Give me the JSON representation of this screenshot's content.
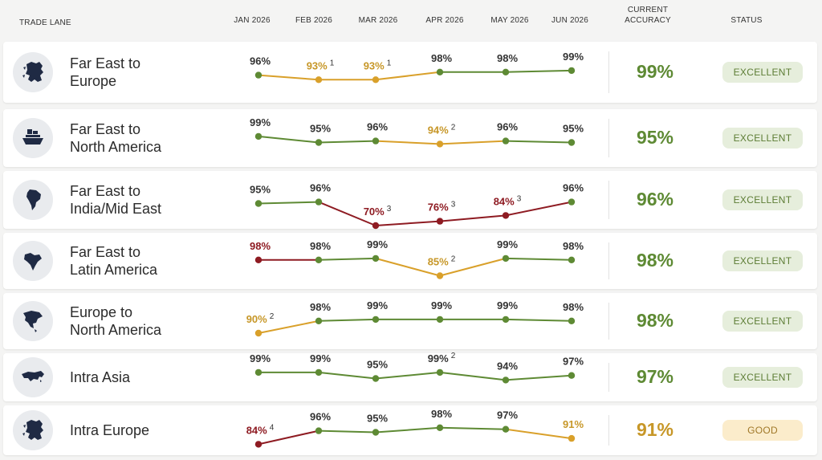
{
  "header": {
    "trade_lane": "TRADE LANE",
    "months": [
      "JAN 2026",
      "FEB 2026",
      "MAR 2026",
      "APR 2026",
      "MAY 2026",
      "JUN 2026"
    ],
    "current_accuracy": "CURRENT\nACCURACY",
    "status": "STATUS"
  },
  "colors": {
    "green": "#5e8a34",
    "amber": "#d9a02a",
    "red": "#8e1b22",
    "green_text": "#5e8a34",
    "amber_text": "#c79728"
  },
  "chart_data": {
    "type": "line",
    "x": [
      "JAN 2026",
      "FEB 2026",
      "MAR 2026",
      "APR 2026",
      "MAY 2026",
      "JUN 2026"
    ],
    "unit": "%",
    "series": [
      {
        "name": "Far East to\nEurope",
        "icon": "europe-map-icon",
        "values": [
          96,
          93,
          93,
          98,
          98,
          99
        ],
        "levels": [
          "green",
          "amber",
          "amber",
          "green",
          "green",
          "green"
        ],
        "footnotes": [
          "",
          "1",
          "1",
          "",
          "",
          ""
        ],
        "current_accuracy": "99%",
        "status": "EXCELLENT",
        "status_level": "excellent"
      },
      {
        "name": "Far East to\nNorth America",
        "icon": "cargo-ship-icon",
        "values": [
          99,
          95,
          96,
          94,
          96,
          95
        ],
        "levels": [
          "green",
          "green",
          "green",
          "amber",
          "green",
          "green"
        ],
        "footnotes": [
          "",
          "",
          "",
          "2",
          "",
          ""
        ],
        "current_accuracy": "95%",
        "status": "EXCELLENT",
        "status_level": "excellent"
      },
      {
        "name": "Far East to\nIndia/Mid East",
        "icon": "south-america-map-icon",
        "values": [
          95,
          96,
          70,
          76,
          84,
          96
        ],
        "levels": [
          "green",
          "green",
          "red",
          "red",
          "red",
          "green"
        ],
        "footnotes": [
          "",
          "",
          "3",
          "3",
          "3",
          ""
        ],
        "current_accuracy": "96%",
        "status": "EXCELLENT",
        "status_level": "excellent"
      },
      {
        "name": "Far East to\nLatin America",
        "icon": "india-map-icon",
        "values": [
          98,
          98,
          99,
          85,
          99,
          98
        ],
        "levels": [
          "red",
          "green",
          "green",
          "amber",
          "green",
          "green"
        ],
        "footnotes": [
          "",
          "",
          "",
          "2",
          "",
          ""
        ],
        "current_accuracy": "98%",
        "status": "EXCELLENT",
        "status_level": "excellent"
      },
      {
        "name": "Europe to\nNorth America",
        "icon": "north-america-map-icon",
        "values": [
          90,
          98,
          99,
          99,
          99,
          98
        ],
        "levels": [
          "amber",
          "green",
          "green",
          "green",
          "green",
          "green"
        ],
        "footnotes": [
          "2",
          "",
          "",
          "",
          "",
          ""
        ],
        "current_accuracy": "98%",
        "status": "EXCELLENT",
        "status_level": "excellent"
      },
      {
        "name": "Intra Asia",
        "icon": "asia-map-icon",
        "values": [
          99,
          99,
          95,
          99,
          94,
          97
        ],
        "levels": [
          "green",
          "green",
          "green",
          "green",
          "green",
          "green"
        ],
        "footnotes": [
          "",
          "",
          "",
          "2",
          "",
          ""
        ],
        "current_accuracy": "97%",
        "status": "EXCELLENT",
        "status_level": "excellent"
      },
      {
        "name": "Intra Europe",
        "icon": "europe-map-icon",
        "values": [
          84,
          96,
          95,
          98,
          97,
          91
        ],
        "levels": [
          "red",
          "green",
          "green",
          "green",
          "green",
          "amber"
        ],
        "footnotes": [
          "4",
          "",
          "",
          "",
          "",
          ""
        ],
        "current_accuracy": "91%",
        "status": "GOOD",
        "status_level": "good"
      }
    ]
  }
}
